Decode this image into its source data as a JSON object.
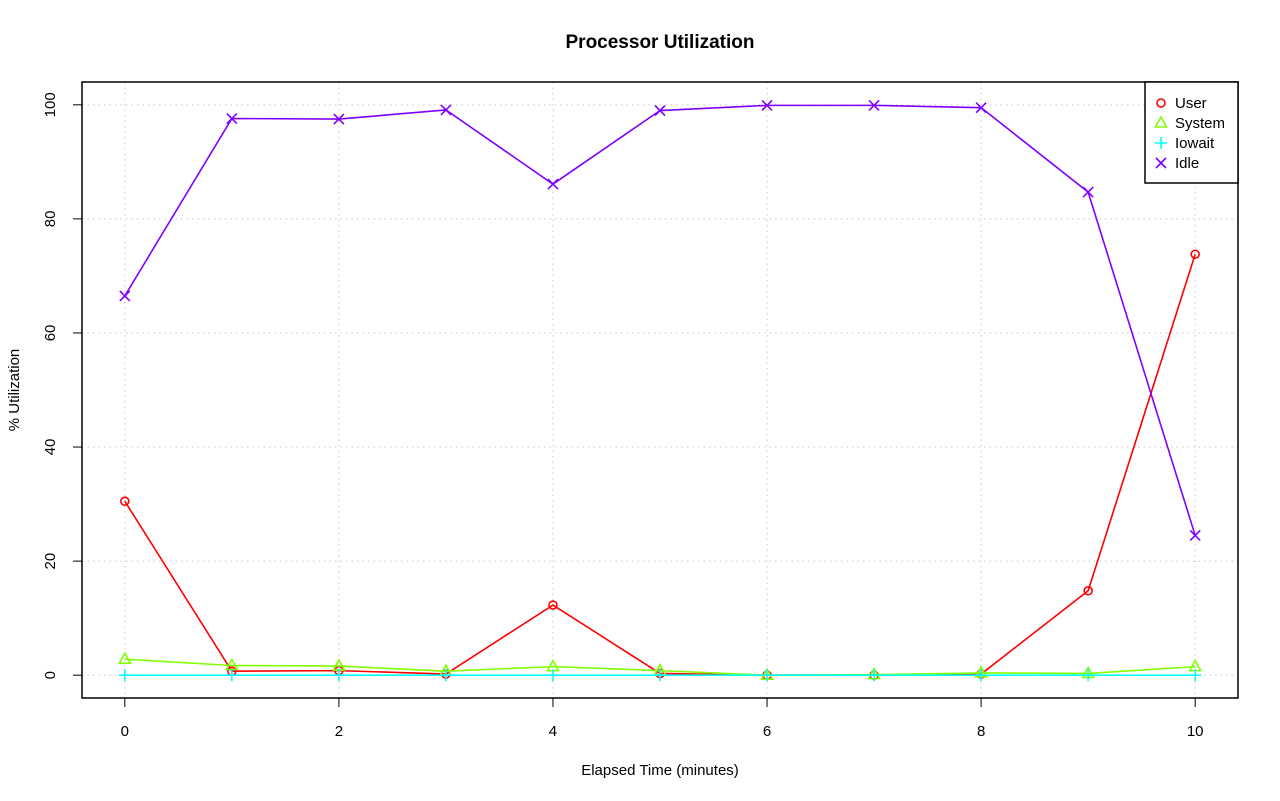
{
  "chart_data": {
    "type": "line",
    "title": "Processor Utilization",
    "xlabel": "Elapsed Time (minutes)",
    "ylabel": "% Utilization",
    "x": [
      0,
      1,
      2,
      3,
      4,
      5,
      6,
      7,
      8,
      9,
      10
    ],
    "xlim": [
      -0.4,
      10.4
    ],
    "ylim": [
      -4,
      104
    ],
    "x_ticks": [
      0,
      2,
      4,
      6,
      8,
      10
    ],
    "y_ticks": [
      0,
      20,
      40,
      60,
      80,
      100
    ],
    "grid": true,
    "legend_position": "top-right",
    "series": [
      {
        "name": "User",
        "color": "#ff0000",
        "marker": "circle",
        "values": [
          30.5,
          0.7,
          0.8,
          0.2,
          12.3,
          0.3,
          0.0,
          0.0,
          0.2,
          14.8,
          73.8
        ]
      },
      {
        "name": "System",
        "color": "#80ff00",
        "marker": "triangle",
        "values": [
          2.8,
          1.7,
          1.6,
          0.7,
          1.5,
          0.8,
          0.0,
          0.1,
          0.4,
          0.3,
          1.5
        ]
      },
      {
        "name": "Iowait",
        "color": "#00ffff",
        "marker": "plus",
        "values": [
          0.0,
          0.0,
          0.0,
          0.0,
          0.0,
          0.0,
          0.0,
          0.0,
          0.0,
          0.0,
          0.0
        ]
      },
      {
        "name": "Idle",
        "color": "#8000ff",
        "marker": "cross",
        "values": [
          66.5,
          97.6,
          97.5,
          99.1,
          86.1,
          99.0,
          99.9,
          99.9,
          99.5,
          84.7,
          24.5
        ]
      }
    ]
  }
}
